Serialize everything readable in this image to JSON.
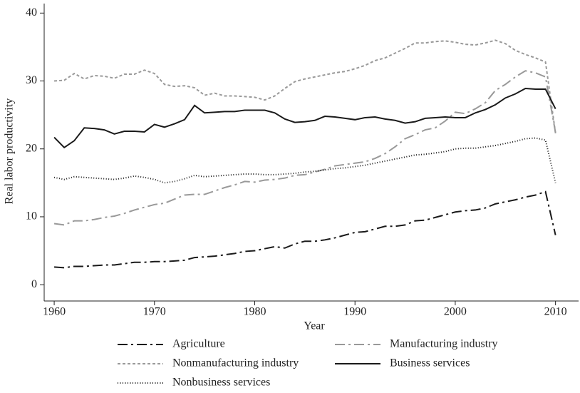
{
  "chart_data": {
    "type": "line",
    "x_label": "Year",
    "y_label": "Real labor productivity",
    "x": [
      1960,
      1961,
      1962,
      1963,
      1964,
      1965,
      1966,
      1967,
      1968,
      1969,
      1970,
      1971,
      1972,
      1973,
      1974,
      1975,
      1976,
      1977,
      1978,
      1979,
      1980,
      1981,
      1982,
      1983,
      1984,
      1985,
      1986,
      1987,
      1988,
      1989,
      1990,
      1991,
      1992,
      1993,
      1994,
      1995,
      1996,
      1997,
      1998,
      1999,
      2000,
      2001,
      2002,
      2003,
      2004,
      2005,
      2006,
      2007,
      2008,
      2009,
      2010
    ],
    "xlim": [
      1959,
      2012.3
    ],
    "xticks": [
      1960,
      1970,
      1980,
      1990,
      2000,
      2010
    ],
    "ylim": [
      -2.4,
      41.4
    ],
    "yticks": [
      0,
      10,
      20,
      30,
      40
    ],
    "series": [
      {
        "name": "Agriculture",
        "color": "#1a1a1a",
        "dash": "14,5,3,5",
        "values": [
          2.6,
          2.5,
          2.7,
          2.7,
          2.8,
          2.9,
          2.9,
          3.1,
          3.3,
          3.3,
          3.4,
          3.4,
          3.5,
          3.6,
          4.0,
          4.1,
          4.2,
          4.4,
          4.6,
          4.9,
          5.0,
          5.3,
          5.6,
          5.4,
          6.0,
          6.4,
          6.4,
          6.6,
          6.9,
          7.3,
          7.7,
          7.8,
          8.2,
          8.6,
          8.6,
          8.8,
          9.4,
          9.5,
          9.9,
          10.3,
          10.7,
          10.9,
          11.0,
          11.3,
          11.9,
          12.2,
          12.5,
          12.9,
          13.2,
          13.7,
          7.3
        ]
      },
      {
        "name": "Manufacturing industry",
        "color": "#999999",
        "dash": "14,5,3,5",
        "values": [
          9.0,
          8.8,
          9.4,
          9.4,
          9.6,
          9.9,
          10.1,
          10.5,
          11.0,
          11.4,
          11.8,
          12.0,
          12.6,
          13.2,
          13.3,
          13.3,
          13.8,
          14.3,
          14.7,
          15.2,
          15.1,
          15.4,
          15.5,
          15.7,
          16.1,
          16.2,
          16.6,
          17.0,
          17.5,
          17.7,
          17.9,
          18.1,
          18.6,
          19.3,
          20.3,
          21.5,
          22.1,
          22.8,
          23.1,
          24.1,
          25.4,
          25.2,
          25.9,
          26.8,
          28.6,
          29.5,
          30.6,
          31.5,
          31.2,
          30.6,
          22.4
        ]
      },
      {
        "name": "Nonmanufacturing industry",
        "color": "#999999",
        "dash": "4,3",
        "values": [
          30.0,
          30.1,
          31.1,
          30.3,
          30.8,
          30.7,
          30.4,
          31.0,
          31.0,
          31.6,
          31.1,
          29.5,
          29.2,
          29.3,
          29.0,
          27.9,
          28.2,
          27.8,
          27.8,
          27.7,
          27.6,
          27.2,
          27.8,
          28.9,
          29.9,
          30.3,
          30.6,
          30.9,
          31.2,
          31.4,
          31.8,
          32.3,
          33.0,
          33.4,
          34.1,
          34.8,
          35.6,
          35.6,
          35.8,
          35.9,
          35.7,
          35.4,
          35.3,
          35.6,
          36.0,
          35.5,
          34.5,
          33.9,
          33.4,
          32.8,
          22.3
        ]
      },
      {
        "name": "Business services",
        "color": "#1a1a1a",
        "dash": "none",
        "values": [
          21.7,
          20.2,
          21.2,
          23.1,
          23.0,
          22.8,
          22.2,
          22.6,
          22.6,
          22.5,
          23.6,
          23.2,
          23.7,
          24.3,
          26.4,
          25.3,
          25.4,
          25.5,
          25.5,
          25.7,
          25.7,
          25.7,
          25.3,
          24.4,
          23.9,
          24.0,
          24.2,
          24.8,
          24.7,
          24.5,
          24.3,
          24.6,
          24.7,
          24.4,
          24.2,
          23.8,
          24.0,
          24.5,
          24.6,
          24.7,
          24.6,
          24.6,
          25.3,
          25.8,
          26.5,
          27.5,
          28.1,
          28.9,
          28.8,
          28.8,
          25.9
        ]
      },
      {
        "name": "Nonbusiness services",
        "color": "#1a1a1a",
        "dash": "1,2.5",
        "values": [
          15.8,
          15.5,
          15.9,
          15.8,
          15.7,
          15.6,
          15.5,
          15.7,
          16.0,
          15.8,
          15.5,
          15.0,
          15.2,
          15.6,
          16.1,
          15.9,
          16.0,
          16.1,
          16.2,
          16.3,
          16.3,
          16.2,
          16.2,
          16.3,
          16.4,
          16.6,
          16.7,
          16.9,
          17.1,
          17.2,
          17.4,
          17.6,
          17.9,
          18.2,
          18.5,
          18.8,
          19.1,
          19.2,
          19.4,
          19.6,
          20.0,
          20.1,
          20.1,
          20.3,
          20.5,
          20.8,
          21.1,
          21.5,
          21.6,
          21.3,
          15.0
        ]
      }
    ]
  }
}
